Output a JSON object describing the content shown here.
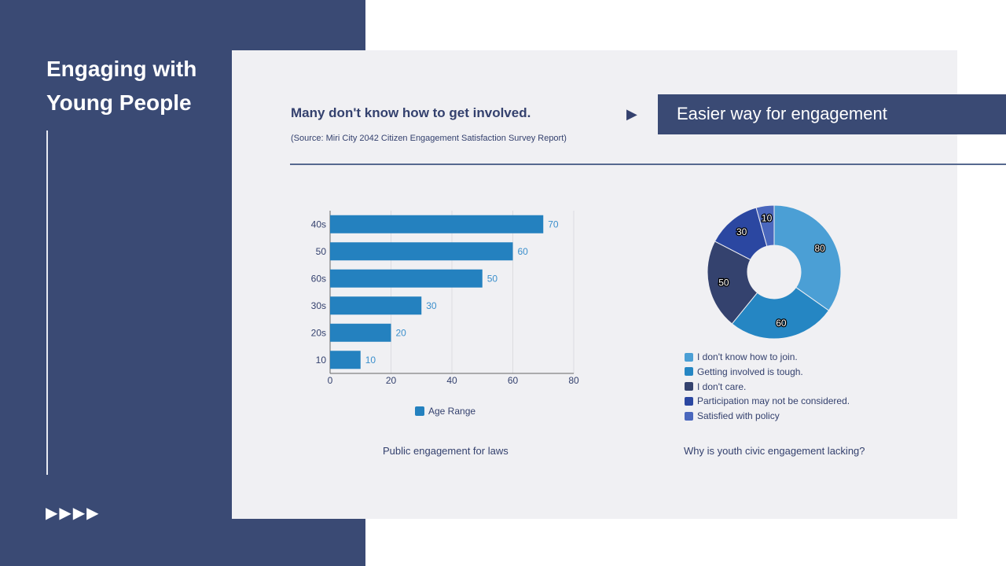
{
  "sidebar": {
    "title": "Engaging with Young People",
    "arrows": "▶▶▶▶"
  },
  "header": {
    "headline": "Many don't know how to get involved.",
    "source": "(Source: Miri City 2042 Citizen Engagement Satisfaction Survey Report)",
    "banner": "Easier way for engagement"
  },
  "chart_data": [
    {
      "type": "bar",
      "orientation": "horizontal",
      "categories": [
        "40s",
        "50",
        "60s",
        "30s",
        "20s",
        "10"
      ],
      "series": [
        {
          "name": "Age Range",
          "values": [
            70,
            60,
            50,
            30,
            20,
            10
          ]
        }
      ],
      "xlim": [
        0,
        80
      ],
      "xticks": [
        0,
        20,
        40,
        60,
        80
      ],
      "grid": true,
      "legend": "bottom",
      "caption": "Public engagement for laws",
      "color": "#2481bf"
    },
    {
      "type": "pie",
      "donut": true,
      "labels": [
        "I don't know how to join.",
        "Getting involved is tough.",
        "I don't care.",
        "Participation may not be considered.",
        "Satisfied with policy"
      ],
      "values": [
        80,
        60,
        50,
        30,
        10
      ],
      "colors": [
        "#4b9fd5",
        "#2586c3",
        "#34426e",
        "#2b47a1",
        "#4a67bd"
      ],
      "legend": "bottom",
      "caption": "Why is youth civic engagement lacking?"
    }
  ]
}
